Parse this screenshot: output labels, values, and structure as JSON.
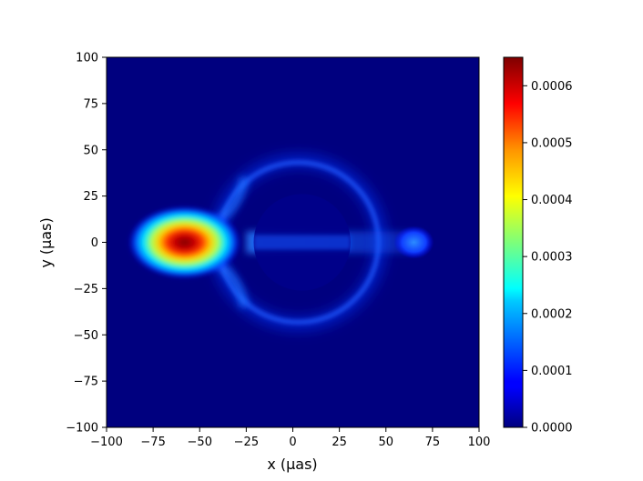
{
  "chart_data": {
    "type": "heatmap",
    "title": "",
    "xlabel": "x (μas)",
    "ylabel": "y (μas)",
    "xlim": [
      -100,
      100
    ],
    "ylim": [
      -100,
      100
    ],
    "xticks": [
      -100,
      -75,
      -50,
      -25,
      0,
      25,
      50,
      75,
      100
    ],
    "xtick_labels": [
      "−100",
      "−75",
      "−50",
      "−25",
      "0",
      "25",
      "50",
      "75",
      "100"
    ],
    "yticks": [
      100,
      75,
      50,
      25,
      0,
      -25,
      -50,
      -75,
      -100
    ],
    "ytick_labels": [
      "100",
      "75",
      "50",
      "25",
      "0",
      "−25",
      "−50",
      "−75",
      "−100"
    ],
    "colormap": "jet",
    "colorbar": {
      "min": 0,
      "max": 0.00065,
      "ticks": [
        0.0006,
        0.0005,
        0.0004,
        0.0003,
        0.0002,
        0.0001,
        0.0
      ],
      "tick_labels": [
        "0.0006",
        "0.0005",
        "0.0004",
        "0.0003",
        "0.0002",
        "0.0001",
        "0.0000"
      ]
    },
    "features": [
      {
        "kind": "hotspot",
        "x": -63,
        "y": 0,
        "peak": 0.00065
      },
      {
        "kind": "photon-ring",
        "center_x": 3,
        "center_y": 0,
        "radius": 43,
        "level": 0.00012
      },
      {
        "kind": "shadow",
        "center_x": 5,
        "center_y": 0,
        "radius": 26
      },
      {
        "kind": "jet-band",
        "x_from": -25,
        "x_to": 70,
        "y": 0,
        "level": 9e-05
      },
      {
        "kind": "blob",
        "x": 65,
        "y": 0,
        "level": 0.00014
      }
    ]
  }
}
